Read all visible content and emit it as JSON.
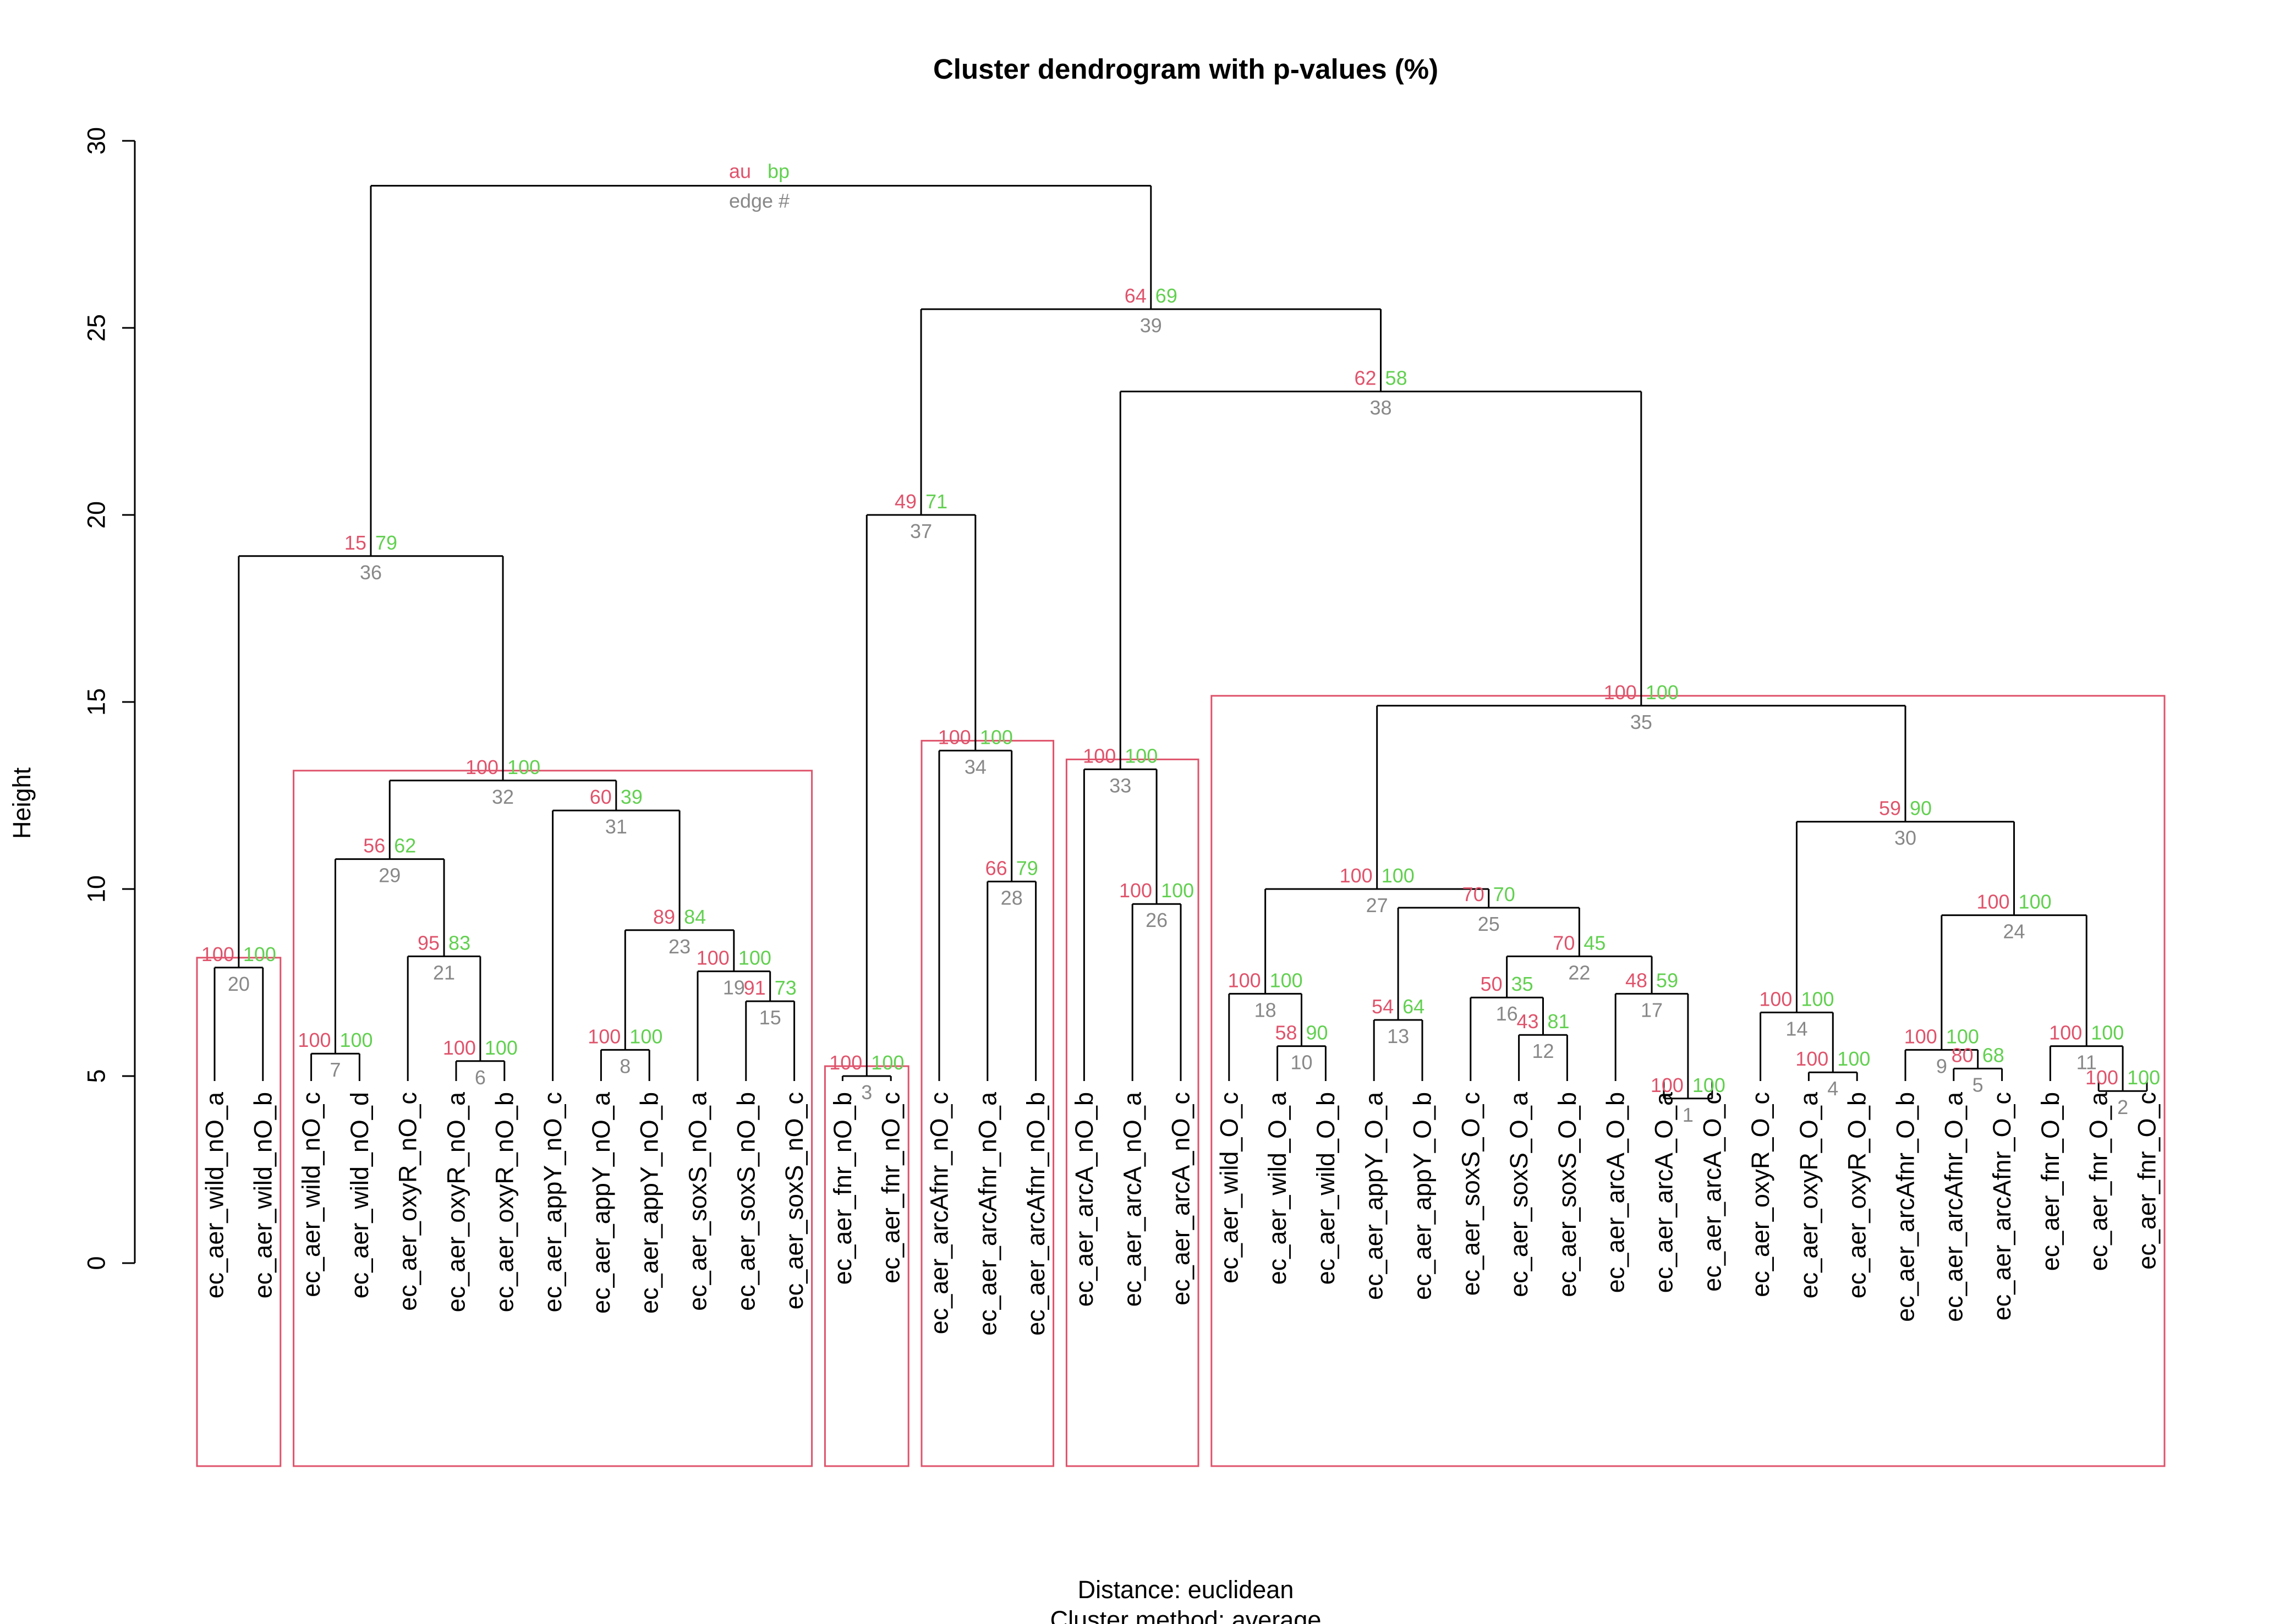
{
  "chart_data": {
    "type": "dendrogram",
    "title": "Cluster dendrogram with p-values (%)",
    "ylabel": "Height",
    "xlabel_lines": [
      "Distance:  euclidean",
      "Cluster method: average"
    ],
    "ylim": [
      0,
      30
    ],
    "yticks": [
      "0",
      "5",
      "10",
      "15",
      "20",
      "25",
      "30"
    ],
    "colors": {
      "au": "#DF536B",
      "bp": "#61D04F",
      "edge": "#888888",
      "rect": "#DF536B",
      "line": "#000000"
    },
    "legend": {
      "au": "au",
      "bp": "bp",
      "edge": "edge #",
      "placement": "top-center"
    },
    "leaves": [
      "ec_aer_wild_nO_a",
      "ec_aer_wild_nO_b",
      "ec_aer_wild_nO_c",
      "ec_aer_wild_nO_d",
      "ec_aer_oxyR_nO_c",
      "ec_aer_oxyR_nO_a",
      "ec_aer_oxyR_nO_b",
      "ec_aer_appY_nO_c",
      "ec_aer_appY_nO_a",
      "ec_aer_appY_nO_b",
      "ec_aer_soxS_nO_a",
      "ec_aer_soxS_nO_b",
      "ec_aer_soxS_nO_c",
      "ec_aer_fnr_nO_b",
      "ec_aer_fnr_nO_c",
      "ec_aer_arcAfnr_nO_c",
      "ec_aer_arcAfnr_nO_a",
      "ec_aer_arcAfnr_nO_b",
      "ec_aer_arcA_nO_b",
      "ec_aer_arcA_nO_a",
      "ec_aer_arcA_nO_c",
      "ec_aer_wild_O_c",
      "ec_aer_wild_O_a",
      "ec_aer_wild_O_b",
      "ec_aer_appY_O_a",
      "ec_aer_appY_O_b",
      "ec_aer_soxS_O_c",
      "ec_aer_soxS_O_a",
      "ec_aer_soxS_O_b",
      "ec_aer_arcA_O_b",
      "ec_aer_arcA_O_a",
      "ec_aer_arcA_O_c",
      "ec_aer_oxyR_O_c",
      "ec_aer_oxyR_O_a",
      "ec_aer_oxyR_O_b",
      "ec_aer_arcAfnr_O_b",
      "ec_aer_arcAfnr_O_a",
      "ec_aer_arcAfnr_O_c",
      "ec_aer_fnr_O_b",
      "ec_aer_fnr_O_a",
      "ec_aer_fnr_O_c"
    ],
    "merges": [
      {
        "edge": 1,
        "left": "L31",
        "right": "L32",
        "height": 4.4,
        "au": 100,
        "bp": 100
      },
      {
        "edge": 2,
        "left": "L40",
        "right": "L41",
        "height": 4.6,
        "au": 100,
        "bp": 100
      },
      {
        "edge": 3,
        "left": "L14",
        "right": "L15",
        "height": 5.0,
        "au": 100,
        "bp": 100
      },
      {
        "edge": 4,
        "left": "L34",
        "right": "L35",
        "height": 5.1,
        "au": 100,
        "bp": 100
      },
      {
        "edge": 5,
        "left": "L37",
        "right": "L38",
        "height": 5.2,
        "au": 80,
        "bp": 68
      },
      {
        "edge": 6,
        "left": "L6",
        "right": "L7",
        "height": 5.4,
        "au": 100,
        "bp": 100
      },
      {
        "edge": 7,
        "left": "L3",
        "right": "L4",
        "height": 5.6,
        "au": 100,
        "bp": 100
      },
      {
        "edge": 8,
        "left": "L9",
        "right": "L10",
        "height": 5.7,
        "au": 100,
        "bp": 100
      },
      {
        "edge": 9,
        "left": "L36",
        "right": "E5",
        "height": 5.7,
        "au": 100,
        "bp": 100
      },
      {
        "edge": 10,
        "left": "L23",
        "right": "L24",
        "height": 5.8,
        "au": 58,
        "bp": 90
      },
      {
        "edge": 11,
        "left": "L39",
        "right": "E2",
        "height": 5.8,
        "au": 100,
        "bp": 100
      },
      {
        "edge": 12,
        "left": "L28",
        "right": "L29",
        "height": 6.1,
        "au": 43,
        "bp": 81
      },
      {
        "edge": 13,
        "left": "L25",
        "right": "L26",
        "height": 6.5,
        "au": 54,
        "bp": 64
      },
      {
        "edge": 14,
        "left": "L33",
        "right": "E4",
        "height": 6.7,
        "au": 100,
        "bp": 100
      },
      {
        "edge": 15,
        "left": "L12",
        "right": "L13",
        "height": 7.0,
        "au": 91,
        "bp": 73
      },
      {
        "edge": 16,
        "left": "L27",
        "right": "E12",
        "height": 7.1,
        "au": 50,
        "bp": 35
      },
      {
        "edge": 17,
        "left": "L30",
        "right": "E1",
        "height": 7.2,
        "au": 48,
        "bp": 59
      },
      {
        "edge": 18,
        "left": "L22",
        "right": "E10",
        "height": 7.2,
        "au": 100,
        "bp": 100
      },
      {
        "edge": 19,
        "left": "L11",
        "right": "E15",
        "height": 7.8,
        "au": 100,
        "bp": 100
      },
      {
        "edge": 20,
        "left": "L1",
        "right": "L2",
        "height": 7.9,
        "au": 100,
        "bp": 100
      },
      {
        "edge": 21,
        "left": "L5",
        "right": "E6",
        "height": 8.2,
        "au": 95,
        "bp": 83
      },
      {
        "edge": 22,
        "left": "E16",
        "right": "E17",
        "height": 8.2,
        "au": 70,
        "bp": 45
      },
      {
        "edge": 23,
        "left": "E8",
        "right": "E19",
        "height": 8.9,
        "au": 89,
        "bp": 84
      },
      {
        "edge": 24,
        "left": "E9",
        "right": "E11",
        "height": 9.3,
        "au": 100,
        "bp": 100
      },
      {
        "edge": 25,
        "left": "E13",
        "right": "E22",
        "height": 9.5,
        "au": 70,
        "bp": 70
      },
      {
        "edge": 26,
        "left": "L20",
        "right": "L21",
        "height": 9.6,
        "au": 100,
        "bp": 100
      },
      {
        "edge": 27,
        "left": "E18",
        "right": "E25",
        "height": 10.0,
        "au": 100,
        "bp": 100
      },
      {
        "edge": 28,
        "left": "L17",
        "right": "L18",
        "height": 10.2,
        "au": 66,
        "bp": 79
      },
      {
        "edge": 29,
        "left": "E7",
        "right": "E21",
        "height": 10.8,
        "au": 56,
        "bp": 62
      },
      {
        "edge": 30,
        "left": "E14",
        "right": "E24",
        "height": 11.8,
        "au": 59,
        "bp": 90
      },
      {
        "edge": 31,
        "left": "L8",
        "right": "E23",
        "height": 12.1,
        "au": 60,
        "bp": 39
      },
      {
        "edge": 32,
        "left": "E29",
        "right": "E31",
        "height": 12.9,
        "au": 100,
        "bp": 100
      },
      {
        "edge": 33,
        "left": "L19",
        "right": "E26",
        "height": 13.2,
        "au": 100,
        "bp": 100
      },
      {
        "edge": 34,
        "left": "L16",
        "right": "E28",
        "height": 13.7,
        "au": 100,
        "bp": 100
      },
      {
        "edge": 35,
        "left": "E27",
        "right": "E30",
        "height": 14.9,
        "au": 100,
        "bp": 100
      },
      {
        "edge": 36,
        "left": "E20",
        "right": "E32",
        "height": 18.9,
        "au": 15,
        "bp": 79
      },
      {
        "edge": 37,
        "left": "E3",
        "right": "E34",
        "height": 20.0,
        "au": 49,
        "bp": 71
      },
      {
        "edge": 38,
        "left": "E33",
        "right": "E35",
        "height": 23.3,
        "au": 62,
        "bp": 58
      },
      {
        "edge": 39,
        "left": "E37",
        "right": "E38",
        "height": 25.5,
        "au": 64,
        "bp": 69
      },
      {
        "edge": 40,
        "left": "E36",
        "right": "E39",
        "height": 28.8,
        "au": null,
        "bp": null
      }
    ],
    "highlighted_clusters": [
      {
        "from_leaf": 1,
        "to_leaf": 2,
        "height": 7.9
      },
      {
        "from_leaf": 3,
        "to_leaf": 13,
        "height": 12.9
      },
      {
        "from_leaf": 14,
        "to_leaf": 15,
        "height": 5.0
      },
      {
        "from_leaf": 16,
        "to_leaf": 18,
        "height": 13.7
      },
      {
        "from_leaf": 19,
        "to_leaf": 21,
        "height": 13.2
      },
      {
        "from_leaf": 22,
        "to_leaf": 41,
        "height": 14.9
      }
    ]
  }
}
